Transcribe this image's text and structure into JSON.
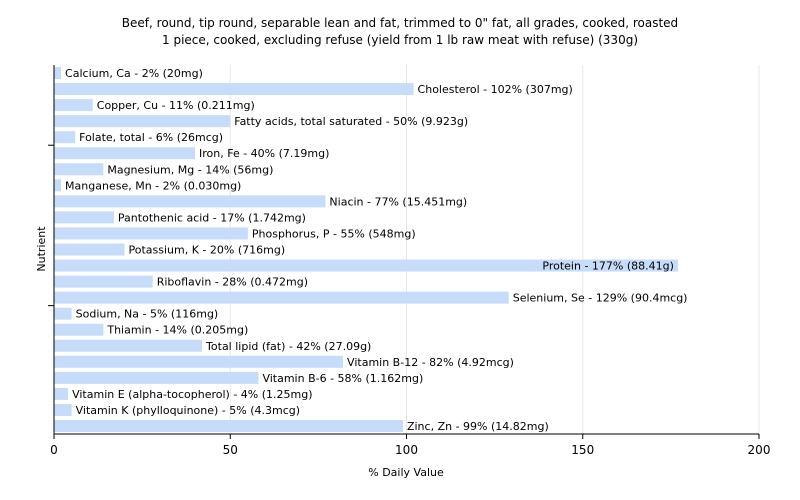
{
  "chart_data": {
    "type": "bar",
    "orientation": "horizontal",
    "title": "Beef, round, tip round, separable lean and fat, trimmed to 0\" fat, all grades, cooked, roasted",
    "subtitle": "1 piece, cooked, excluding refuse (yield from 1 lb raw meat with refuse) (330g)",
    "xlabel": "% Daily Value",
    "ylabel": "Nutrient",
    "xlim": [
      0,
      200
    ],
    "xticks": [
      "0",
      "50",
      "100",
      "150",
      "200"
    ],
    "grid": true,
    "bar_color": "#c6dcf8",
    "bars": [
      {
        "name": "Calcium, Ca",
        "value": 2,
        "label": "Calcium, Ca - 2% (20mg)"
      },
      {
        "name": "Cholesterol",
        "value": 102,
        "label": "Cholesterol - 102% (307mg)"
      },
      {
        "name": "Copper, Cu",
        "value": 11,
        "label": "Copper, Cu - 11% (0.211mg)"
      },
      {
        "name": "Fatty acids, total saturated",
        "value": 50,
        "label": "Fatty acids, total saturated - 50% (9.923g)"
      },
      {
        "name": "Folate, total",
        "value": 6,
        "label": "Folate, total - 6% (26mcg)"
      },
      {
        "name": "Iron, Fe",
        "value": 40,
        "label": "Iron, Fe - 40% (7.19mg)"
      },
      {
        "name": "Magnesium, Mg",
        "value": 14,
        "label": "Magnesium, Mg - 14% (56mg)"
      },
      {
        "name": "Manganese, Mn",
        "value": 2,
        "label": "Manganese, Mn - 2% (0.030mg)"
      },
      {
        "name": "Niacin",
        "value": 77,
        "label": "Niacin - 77% (15.451mg)"
      },
      {
        "name": "Pantothenic acid",
        "value": 17,
        "label": "Pantothenic acid - 17% (1.742mg)"
      },
      {
        "name": "Phosphorus, P",
        "value": 55,
        "label": "Phosphorus, P - 55% (548mg)"
      },
      {
        "name": "Potassium, K",
        "value": 20,
        "label": "Potassium, K - 20% (716mg)"
      },
      {
        "name": "Protein",
        "value": 177,
        "label": "Protein - 177% (88.41g)"
      },
      {
        "name": "Riboflavin",
        "value": 28,
        "label": "Riboflavin - 28% (0.472mg)"
      },
      {
        "name": "Selenium, Se",
        "value": 129,
        "label": "Selenium, Se - 129% (90.4mcg)"
      },
      {
        "name": "Sodium, Na",
        "value": 5,
        "label": "Sodium, Na - 5% (116mg)"
      },
      {
        "name": "Thiamin",
        "value": 14,
        "label": "Thiamin - 14% (0.205mg)"
      },
      {
        "name": "Total lipid (fat)",
        "value": 42,
        "label": "Total lipid (fat) - 42% (27.09g)"
      },
      {
        "name": "Vitamin B-12",
        "value": 82,
        "label": "Vitamin B-12 - 82% (4.92mcg)"
      },
      {
        "name": "Vitamin B-6",
        "value": 58,
        "label": "Vitamin B-6 - 58% (1.162mg)"
      },
      {
        "name": "Vitamin E (alpha-tocopherol)",
        "value": 4,
        "label": "Vitamin E (alpha-tocopherol) - 4% (1.25mg)"
      },
      {
        "name": "Vitamin K (phylloquinone)",
        "value": 5,
        "label": "Vitamin K (phylloquinone) - 5% (4.3mcg)"
      },
      {
        "name": "Zinc, Zn",
        "value": 99,
        "label": "Zinc, Zn - 99% (14.82mg)"
      }
    ]
  }
}
